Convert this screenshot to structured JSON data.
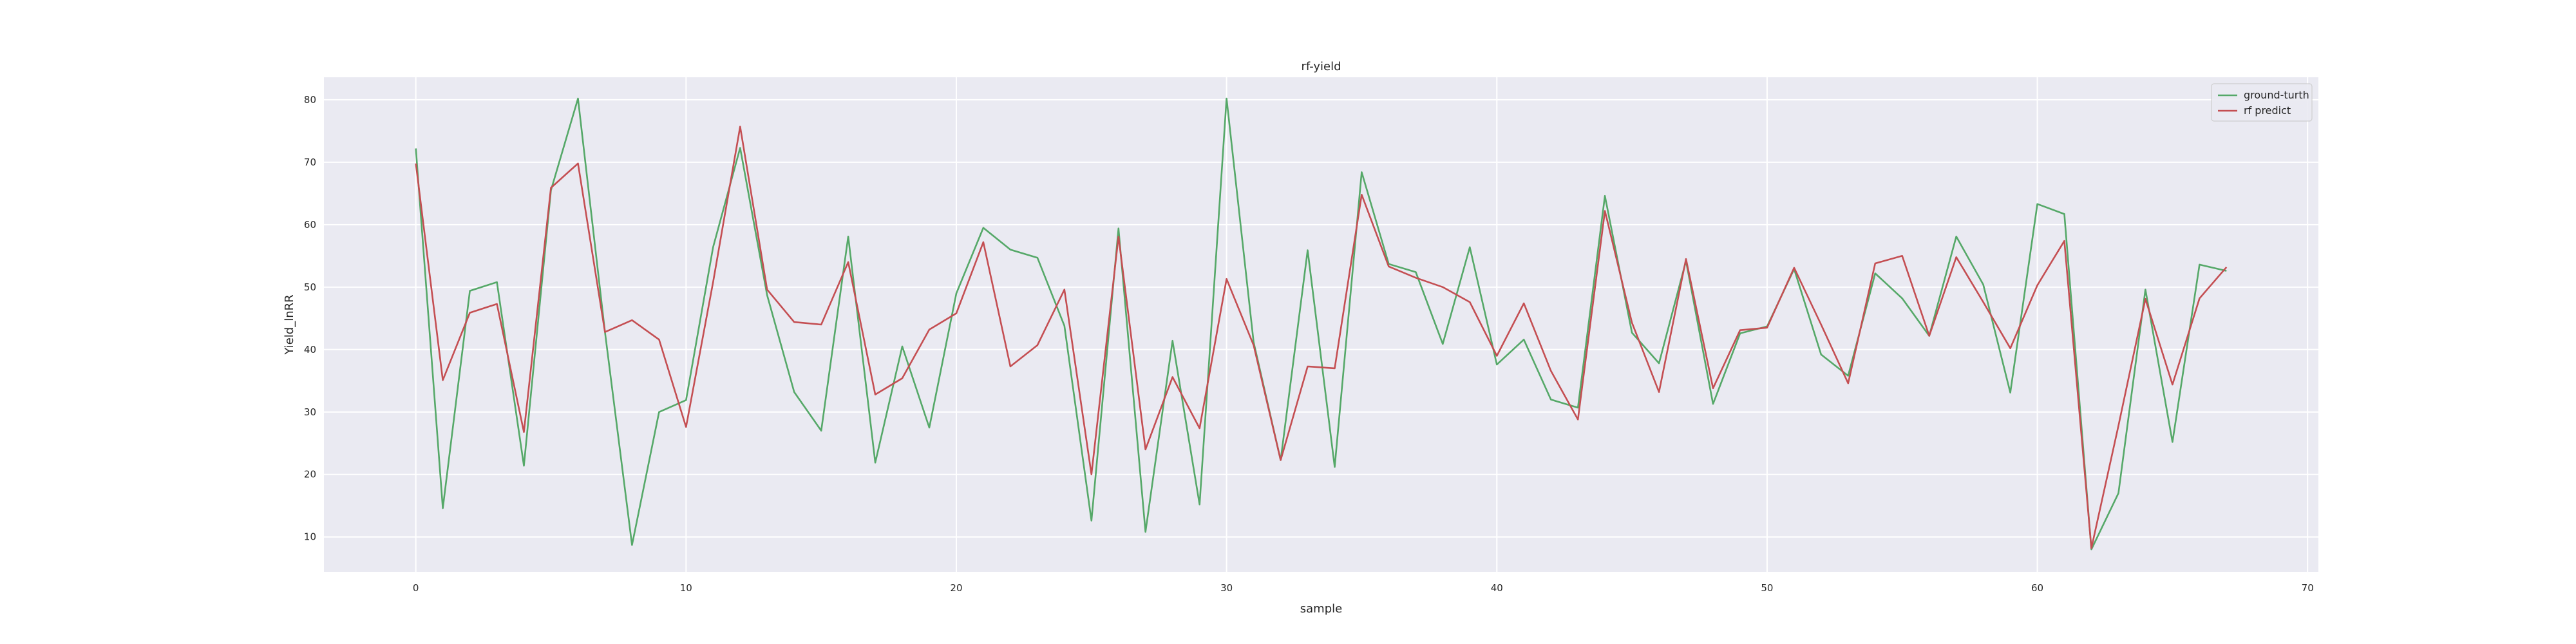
{
  "chart_data": {
    "type": "line",
    "title": "rf-yield",
    "xlabel": "sample",
    "ylabel": "Yield_lnRR",
    "xlim": [
      -3.4,
      70.4
    ],
    "ylim": [
      4.4,
      83.6
    ],
    "xticks": [
      0,
      10,
      20,
      30,
      40,
      50,
      60,
      70
    ],
    "yticks": [
      10,
      20,
      30,
      40,
      50,
      60,
      70,
      80
    ],
    "grid": true,
    "legend_position": "top-right",
    "series": [
      {
        "name": "ground-turth",
        "color": "#55a868",
        "values": [
          72.2,
          14.6,
          49.4,
          50.8,
          21.4,
          65.5,
          80.2,
          42.8,
          8.7,
          30.0,
          31.9,
          56.4,
          72.3,
          48.7,
          33.2,
          27.0,
          58.1,
          21.9,
          40.5,
          27.5,
          49.0,
          59.5,
          56.0,
          54.7,
          43.8,
          12.6,
          59.4,
          10.8,
          41.4,
          15.2,
          80.2,
          41.2,
          22.3,
          55.9,
          21.2,
          68.4,
          53.7,
          52.4,
          40.9,
          56.4,
          37.6,
          41.6,
          32.0,
          30.7,
          64.6,
          42.7,
          37.8,
          54.2,
          31.3,
          42.6,
          43.7,
          52.9,
          39.2,
          35.8,
          52.2,
          48.2,
          42.2,
          58.1,
          50.4,
          33.1,
          63.3,
          61.7,
          8.0,
          17.0,
          49.6,
          25.2,
          53.6,
          52.6
        ]
      },
      {
        "name": "rf predict",
        "color": "#c44e52",
        "values": [
          69.8,
          35.1,
          45.9,
          47.3,
          26.8,
          65.9,
          69.8,
          42.8,
          44.7,
          41.6,
          27.6,
          50.8,
          75.7,
          49.6,
          44.4,
          44.0,
          54.0,
          32.8,
          35.4,
          43.2,
          45.8,
          57.2,
          37.3,
          40.7,
          49.6,
          20.0,
          58.1,
          24.0,
          35.6,
          27.4,
          51.3,
          40.7,
          22.3,
          37.3,
          37.0,
          64.8,
          53.3,
          51.5,
          50.0,
          47.6,
          39.0,
          47.4,
          36.6,
          28.8,
          62.2,
          44.3,
          33.2,
          54.5,
          33.8,
          43.1,
          43.5,
          53.1,
          44.0,
          34.6,
          53.8,
          55.0,
          42.2,
          54.8,
          47.6,
          40.2,
          50.3,
          57.4,
          8.2,
          27.8,
          48.1,
          34.4,
          48.2,
          53.2
        ]
      }
    ]
  }
}
